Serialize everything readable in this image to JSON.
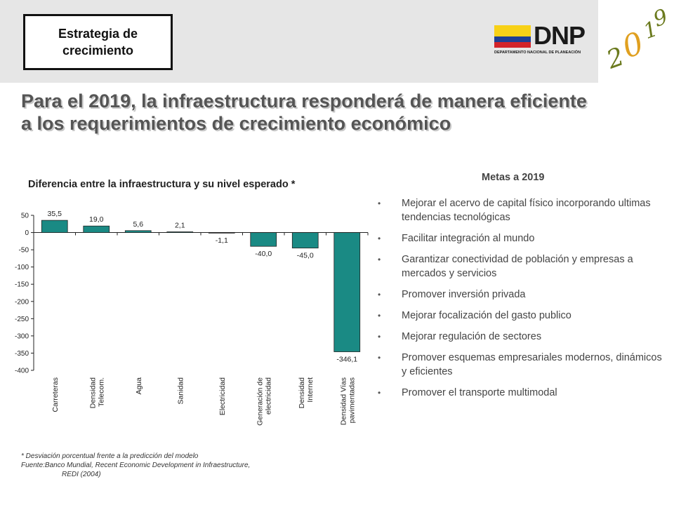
{
  "header": {
    "section_label": "Estrategia de crecimiento",
    "logo_text": "DNP",
    "logo_subtitle": "DEPARTAMENTO NACIONAL DE PLANEACIÓN",
    "vision_logo_text": "2019",
    "flag_colors": [
      "#f7d117",
      "#1d3f94",
      "#d2232a"
    ]
  },
  "headline": {
    "line1": "Para el 2019, la infraestructura responderá de manera eficiente",
    "line2": "a los requerimientos de crecimiento económico"
  },
  "chart_data": {
    "type": "bar",
    "title": "Diferencia entre la infraestructura y su nivel esperado *",
    "categories": [
      "Carreteras",
      "Densidad Telecom.",
      "Agua",
      "Sanidad",
      "Electricidad",
      "Generación de electricidad",
      "Densidad Internet",
      "Densidad Vías pavimentadas"
    ],
    "category_lines": [
      [
        "Carreteras"
      ],
      [
        "Densidad",
        "Telecom."
      ],
      [
        "Agua"
      ],
      [
        "Sanidad"
      ],
      [
        "Electricidad"
      ],
      [
        "Generación de",
        "electricidad"
      ],
      [
        "Densidad",
        "Internet"
      ],
      [
        "Densidad Vías",
        "pavimentadas"
      ]
    ],
    "values": [
      35.5,
      19.0,
      5.6,
      2.1,
      -1.1,
      -40.0,
      -45.0,
      -346.1
    ],
    "value_labels": [
      "35,5",
      "19,0",
      "5,6",
      "2,1",
      "-1,1",
      "-40,0",
      "-45,0",
      "-346,1"
    ],
    "ylim": [
      -400,
      50
    ],
    "yticks": [
      50,
      0,
      -50,
      -100,
      -150,
      -200,
      -250,
      -300,
      -350,
      -400
    ],
    "ytick_labels": [
      "50",
      "0",
      "-50",
      "-100",
      "-150",
      "-200",
      "-250",
      "-300",
      "-350",
      "-400"
    ],
    "bar_color": "#1a8a84",
    "grid": false,
    "legend": "none"
  },
  "footnote": {
    "line1": "* Desviación porcentual frente a la predicción del modelo",
    "line2": "Fuente:Banco Mundial, Recent Economic Development in Infraestructure,",
    "line3": "REDI (2004)"
  },
  "goals": {
    "title": "Metas a 2019",
    "items": [
      "Mejorar el acervo de capital físico incorporando ultimas tendencias tecnológicas",
      "Facilitar integración al mundo",
      "Garantizar conectividad de población y empresas a mercados y servicios",
      "Promover inversión privada",
      "Mejorar focalización del gasto publico",
      "Mejorar regulación de sectores",
      "Promover esquemas empresariales modernos, dinámicos y eficientes",
      "Promover el transporte multimodal"
    ]
  }
}
